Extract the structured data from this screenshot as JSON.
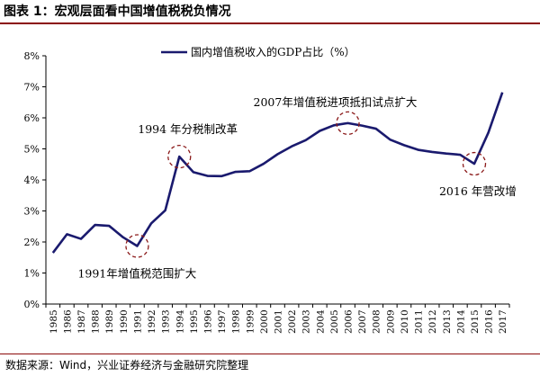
{
  "figure": {
    "title": "图表 1：宏观层面看中国增值税税负情况",
    "source": "数据来源：Wind，兴业证券经济与金融研究院整理"
  },
  "colors": {
    "line": "#1a1a6e",
    "marker": "#8b1a1a",
    "rule": "#8b0a0a"
  },
  "chart_data": {
    "type": "line",
    "categories": [
      "1985",
      "1986",
      "1987",
      "1988",
      "1989",
      "1990",
      "1991",
      "1992",
      "1993",
      "1994",
      "1995",
      "1996",
      "1997",
      "1998",
      "1999",
      "2000",
      "2001",
      "2002",
      "2003",
      "2004",
      "2005",
      "2006",
      "2007",
      "2008",
      "2009",
      "2010",
      "2011",
      "2012",
      "2013",
      "2014",
      "2015",
      "2016",
      "2017"
    ],
    "series": [
      {
        "name": "国内增值税收入的GDP占比（%）",
        "values": [
          1.65,
          2.25,
          2.1,
          2.55,
          2.52,
          2.15,
          1.87,
          2.6,
          3.02,
          4.75,
          4.25,
          4.13,
          4.12,
          4.26,
          4.28,
          4.52,
          4.83,
          5.08,
          5.28,
          5.58,
          5.76,
          5.83,
          5.75,
          5.65,
          5.3,
          5.12,
          4.97,
          4.9,
          4.85,
          4.81,
          4.52,
          5.52,
          6.82
        ]
      }
    ],
    "y_ticks": [
      "0%",
      "1%",
      "2%",
      "3%",
      "4%",
      "5%",
      "6%",
      "7%",
      "8%"
    ],
    "ylim": [
      0,
      8
    ],
    "grid": false,
    "legend_position": "top",
    "annotations": [
      {
        "text": "1991年增值税范围扩大",
        "year": "1991",
        "value": 1.87
      },
      {
        "text": "1994 年分税制改革",
        "year": "1994",
        "value": 4.75
      },
      {
        "text": "2007年增值税进项抵扣试点扩大",
        "year": "2006",
        "value": 5.83
      },
      {
        "text": "2016 年营改增",
        "year": "2015",
        "value": 4.52
      }
    ]
  }
}
